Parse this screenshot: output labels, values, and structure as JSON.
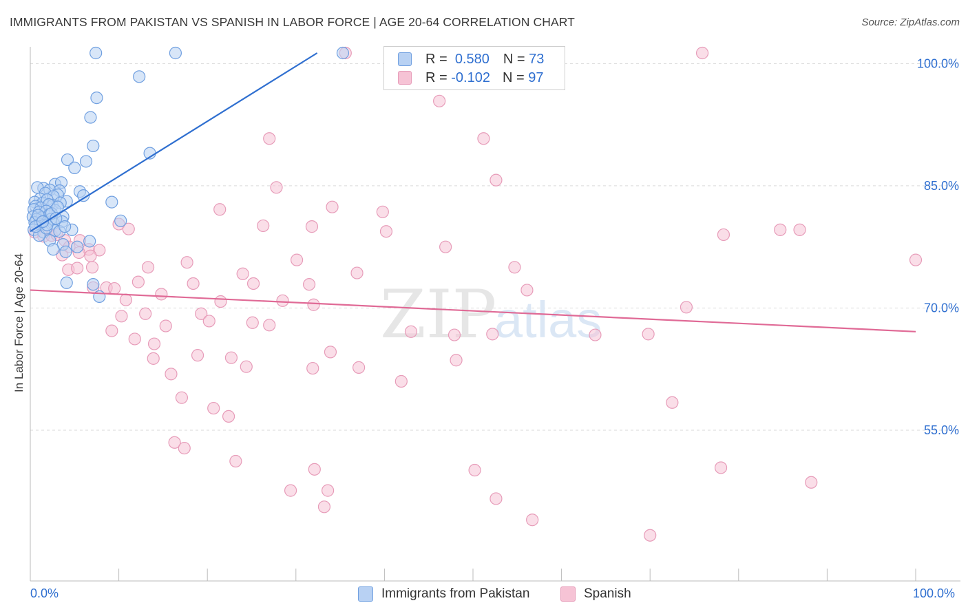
{
  "title": "IMMIGRANTS FROM PAKISTAN VS SPANISH IN LABOR FORCE | AGE 20-64 CORRELATION CHART",
  "source": "Source: ZipAtlas.com",
  "colors": {
    "blue": "#2f6fd0",
    "blue_fill": "#b8d1f3",
    "blue_edge": "#6f9fe0",
    "pink": "#e06a96",
    "pink_fill": "#f6c3d5",
    "pink_edge": "#e79cb9",
    "grid": "#d9d9d9",
    "axis": "#bbbbbb"
  },
  "legend": {
    "r_label": "R =",
    "n_label": "N =",
    "rows": [
      {
        "series": "Immigrants from Pakistan",
        "r": "0.580",
        "n": "73"
      },
      {
        "series": "Spanish",
        "r": "-0.102",
        "n": "97"
      }
    ]
  },
  "watermark": {
    "zip": "ZIP",
    "atlas": "atlas"
  },
  "chart_data": {
    "type": "scatter",
    "xlabel": "",
    "ylabel": "In Labor Force | Age 20-64",
    "xlim": [
      0,
      100
    ],
    "ylim": [
      36.5,
      101.3
    ],
    "x_tick_labels": [
      "0.0%",
      "100.0%"
    ],
    "y_ticks": [
      55,
      70,
      85,
      100
    ],
    "y_tick_labels": [
      "55.0%",
      "70.0%",
      "85.0%",
      "100.0%"
    ],
    "series": [
      {
        "name": "Immigrants from Pakistan",
        "r": 0.58,
        "n": 73,
        "trend": {
          "x": [
            0.0,
            32.4
          ],
          "y": [
            79.4,
            101.3
          ]
        },
        "points": [
          [
            7.4,
            101.3
          ],
          [
            16.4,
            101.3
          ],
          [
            35.3,
            101.3
          ],
          [
            12.3,
            98.4
          ],
          [
            7.5,
            95.8
          ],
          [
            6.8,
            93.4
          ],
          [
            7.1,
            89.9
          ],
          [
            13.5,
            89.0
          ],
          [
            4.2,
            88.2
          ],
          [
            6.3,
            88.0
          ],
          [
            5.0,
            87.2
          ],
          [
            2.8,
            85.2
          ],
          [
            3.5,
            85.4
          ],
          [
            1.5,
            84.7
          ],
          [
            2.2,
            84.5
          ],
          [
            3.3,
            84.4
          ],
          [
            0.8,
            84.8
          ],
          [
            1.7,
            84.1
          ],
          [
            3.1,
            83.9
          ],
          [
            4.1,
            83.1
          ],
          [
            5.6,
            84.3
          ],
          [
            6.0,
            83.8
          ],
          [
            1.1,
            83.4
          ],
          [
            2.6,
            83.7
          ],
          [
            0.5,
            83.0
          ],
          [
            1.4,
            82.9
          ],
          [
            1.9,
            83.3
          ],
          [
            2.5,
            82.6
          ],
          [
            3.4,
            82.9
          ],
          [
            0.6,
            82.5
          ],
          [
            1.2,
            82.3
          ],
          [
            2.1,
            82.7
          ],
          [
            2.8,
            82.0
          ],
          [
            0.4,
            82.1
          ],
          [
            1.0,
            81.8
          ],
          [
            1.8,
            81.9
          ],
          [
            0.3,
            81.2
          ],
          [
            1.3,
            81.1
          ],
          [
            2.2,
            81.5
          ],
          [
            3.7,
            81.2
          ],
          [
            0.7,
            80.9
          ],
          [
            1.6,
            80.7
          ],
          [
            2.3,
            80.9
          ],
          [
            0.5,
            80.5
          ],
          [
            1.1,
            80.3
          ],
          [
            2.6,
            80.4
          ],
          [
            3.6,
            80.6
          ],
          [
            9.2,
            83.0
          ],
          [
            10.2,
            80.7
          ],
          [
            2.8,
            79.5
          ],
          [
            3.3,
            79.4
          ],
          [
            0.4,
            79.6
          ],
          [
            1.5,
            79.3
          ],
          [
            4.7,
            79.6
          ],
          [
            6.7,
            78.2
          ],
          [
            3.7,
            77.8
          ],
          [
            5.3,
            77.5
          ],
          [
            2.2,
            78.3
          ],
          [
            1.0,
            78.9
          ],
          [
            4.0,
            76.9
          ],
          [
            1.8,
            79.8
          ],
          [
            2.6,
            77.2
          ],
          [
            7.1,
            72.9
          ],
          [
            7.8,
            71.4
          ],
          [
            4.1,
            73.1
          ],
          [
            0.6,
            80.0
          ],
          [
            1.9,
            80.2
          ],
          [
            2.4,
            81.6
          ],
          [
            3.1,
            82.4
          ],
          [
            0.9,
            81.4
          ],
          [
            1.4,
            80.6
          ],
          [
            2.9,
            81.0
          ],
          [
            3.9,
            80.0
          ]
        ]
      },
      {
        "name": "Spanish",
        "r": -0.102,
        "n": 97,
        "trend": {
          "x": [
            0.0,
            100.0
          ],
          "y": [
            72.2,
            67.1
          ]
        },
        "points": [
          [
            35.6,
            101.3
          ],
          [
            75.9,
            101.3
          ],
          [
            46.2,
            95.4
          ],
          [
            27.0,
            90.8
          ],
          [
            51.2,
            90.8
          ],
          [
            52.6,
            85.7
          ],
          [
            27.8,
            84.8
          ],
          [
            34.1,
            82.4
          ],
          [
            21.4,
            82.1
          ],
          [
            39.8,
            81.8
          ],
          [
            26.3,
            80.1
          ],
          [
            31.8,
            80.0
          ],
          [
            10.0,
            80.3
          ],
          [
            11.1,
            79.7
          ],
          [
            40.2,
            79.4
          ],
          [
            84.7,
            79.6
          ],
          [
            86.9,
            79.6
          ],
          [
            78.3,
            79.0
          ],
          [
            0.5,
            79.3
          ],
          [
            1.5,
            78.8
          ],
          [
            2.4,
            78.9
          ],
          [
            3.0,
            79.0
          ],
          [
            3.9,
            78.3
          ],
          [
            5.6,
            78.3
          ],
          [
            4.4,
            77.5
          ],
          [
            6.6,
            77.2
          ],
          [
            7.8,
            77.1
          ],
          [
            5.5,
            76.8
          ],
          [
            6.8,
            76.4
          ],
          [
            3.6,
            76.5
          ],
          [
            46.9,
            77.5
          ],
          [
            100.0,
            75.9
          ],
          [
            17.7,
            75.6
          ],
          [
            30.1,
            75.9
          ],
          [
            54.7,
            75.0
          ],
          [
            4.3,
            74.7
          ],
          [
            5.3,
            74.9
          ],
          [
            7.0,
            75.0
          ],
          [
            13.3,
            75.0
          ],
          [
            12.2,
            73.2
          ],
          [
            18.4,
            73.0
          ],
          [
            24.0,
            74.2
          ],
          [
            25.2,
            73.0
          ],
          [
            31.5,
            72.9
          ],
          [
            36.9,
            74.3
          ],
          [
            7.1,
            72.5
          ],
          [
            8.6,
            72.5
          ],
          [
            9.5,
            72.4
          ],
          [
            10.8,
            71.0
          ],
          [
            14.8,
            71.7
          ],
          [
            21.5,
            70.8
          ],
          [
            28.5,
            70.9
          ],
          [
            32.0,
            70.4
          ],
          [
            56.1,
            72.2
          ],
          [
            74.1,
            70.1
          ],
          [
            10.3,
            69.0
          ],
          [
            13.0,
            69.3
          ],
          [
            19.3,
            69.3
          ],
          [
            20.2,
            68.4
          ],
          [
            25.1,
            68.2
          ],
          [
            27.0,
            67.9
          ],
          [
            15.3,
            67.8
          ],
          [
            9.2,
            67.2
          ],
          [
            47.9,
            66.7
          ],
          [
            43.0,
            67.1
          ],
          [
            52.2,
            66.8
          ],
          [
            63.8,
            66.7
          ],
          [
            69.8,
            66.8
          ],
          [
            11.8,
            66.2
          ],
          [
            14.0,
            65.6
          ],
          [
            33.9,
            64.6
          ],
          [
            18.9,
            64.2
          ],
          [
            13.9,
            63.8
          ],
          [
            22.7,
            63.9
          ],
          [
            24.4,
            62.8
          ],
          [
            37.1,
            62.7
          ],
          [
            48.1,
            63.6
          ],
          [
            31.9,
            62.6
          ],
          [
            15.9,
            61.9
          ],
          [
            41.9,
            61.0
          ],
          [
            17.1,
            59.0
          ],
          [
            72.5,
            58.4
          ],
          [
            20.7,
            57.7
          ],
          [
            22.4,
            56.7
          ],
          [
            16.3,
            53.5
          ],
          [
            17.4,
            52.8
          ],
          [
            23.2,
            51.2
          ],
          [
            32.1,
            50.2
          ],
          [
            50.2,
            50.1
          ],
          [
            78.0,
            50.4
          ],
          [
            88.2,
            48.6
          ],
          [
            29.4,
            47.6
          ],
          [
            33.6,
            47.6
          ],
          [
            33.2,
            45.6
          ],
          [
            52.6,
            46.6
          ],
          [
            56.7,
            44.0
          ],
          [
            70.0,
            42.1
          ]
        ]
      }
    ]
  }
}
